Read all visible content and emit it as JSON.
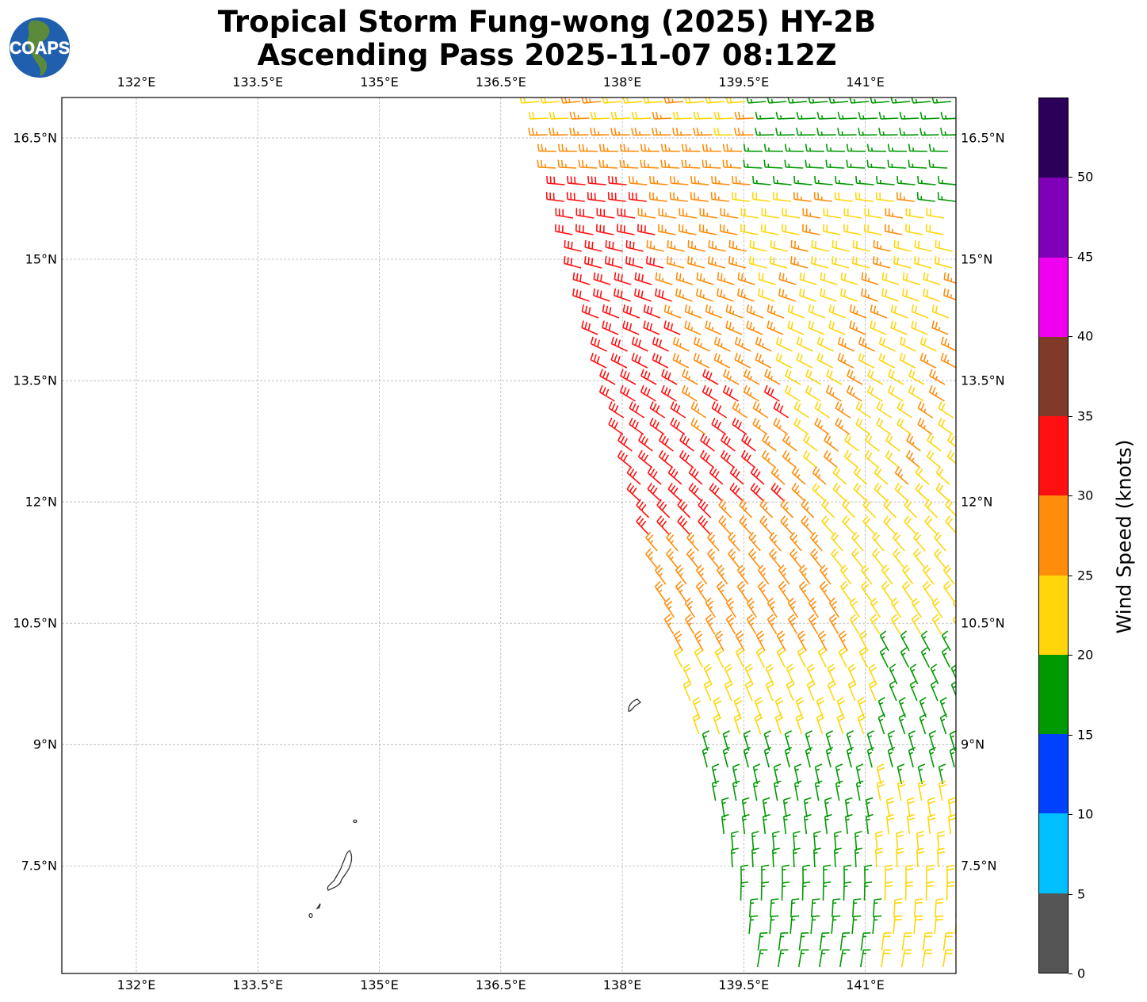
{
  "title": {
    "line1": "Tropical Storm Fung-wong (2025) HY-2B",
    "line2": "Ascending Pass 2025-11-07 08:12Z"
  },
  "logo": {
    "text": "COAPS"
  },
  "map": {
    "lon_range": [
      131.08,
      142.12
    ],
    "lat_range": [
      6.17,
      17.0
    ],
    "lon_ticks": [
      {
        "value": 132,
        "label": "132°E"
      },
      {
        "value": 133.5,
        "label": "133.5°E"
      },
      {
        "value": 135,
        "label": "135°E"
      },
      {
        "value": 136.5,
        "label": "136.5°E"
      },
      {
        "value": 138,
        "label": "138°E"
      },
      {
        "value": 139.5,
        "label": "139.5°E"
      },
      {
        "value": 141,
        "label": "141°E"
      }
    ],
    "lat_ticks": [
      {
        "value": 16.5,
        "label": "16.5°N"
      },
      {
        "value": 15,
        "label": "15°N"
      },
      {
        "value": 13.5,
        "label": "13.5°N"
      },
      {
        "value": 12,
        "label": "12°N"
      },
      {
        "value": 10.5,
        "label": "10.5°N"
      },
      {
        "value": 9,
        "label": "9°N"
      },
      {
        "value": 7.5,
        "label": "7.5°N"
      }
    ]
  },
  "colorbar": {
    "title": "Wind Speed (knots)",
    "ticks": [
      "0",
      "5",
      "10",
      "15",
      "20",
      "25",
      "30",
      "35",
      "40",
      "45",
      "50"
    ],
    "colors": [
      "#555555",
      "#00bfff",
      "#0040ff",
      "#009900",
      "#ffd60a",
      "#ff8c0a",
      "#ff1010",
      "#7f3a28",
      "#f000f0",
      "#8000b8",
      "#2c0058"
    ]
  }
}
